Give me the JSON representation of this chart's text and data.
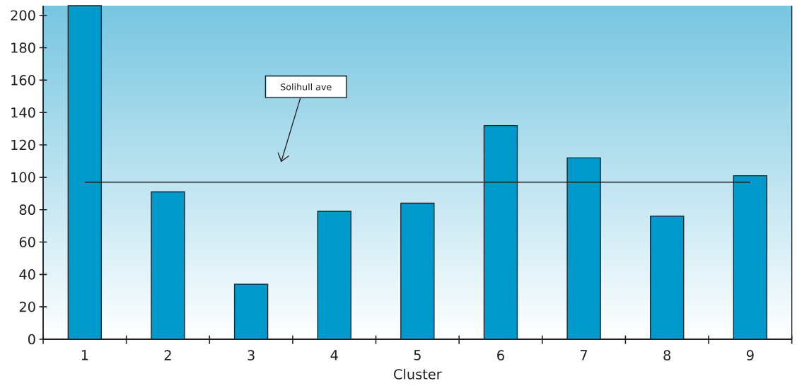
{
  "chart_data": {
    "type": "bar",
    "xlabel": "Cluster",
    "categories": [
      "1",
      "2",
      "3",
      "4",
      "5",
      "6",
      "7",
      "8",
      "9"
    ],
    "values": [
      206,
      91,
      34,
      79,
      84,
      132,
      112,
      76,
      101
    ],
    "color": "#0099cc",
    "ylim": [
      0,
      206
    ],
    "yticks": [
      0,
      20,
      40,
      60,
      80,
      100,
      120,
      140,
      160,
      180,
      200
    ],
    "ref_lines": [
      {
        "axis": "y",
        "value": 97,
        "label": "Solihull ave",
        "color": "#231f20"
      }
    ]
  }
}
